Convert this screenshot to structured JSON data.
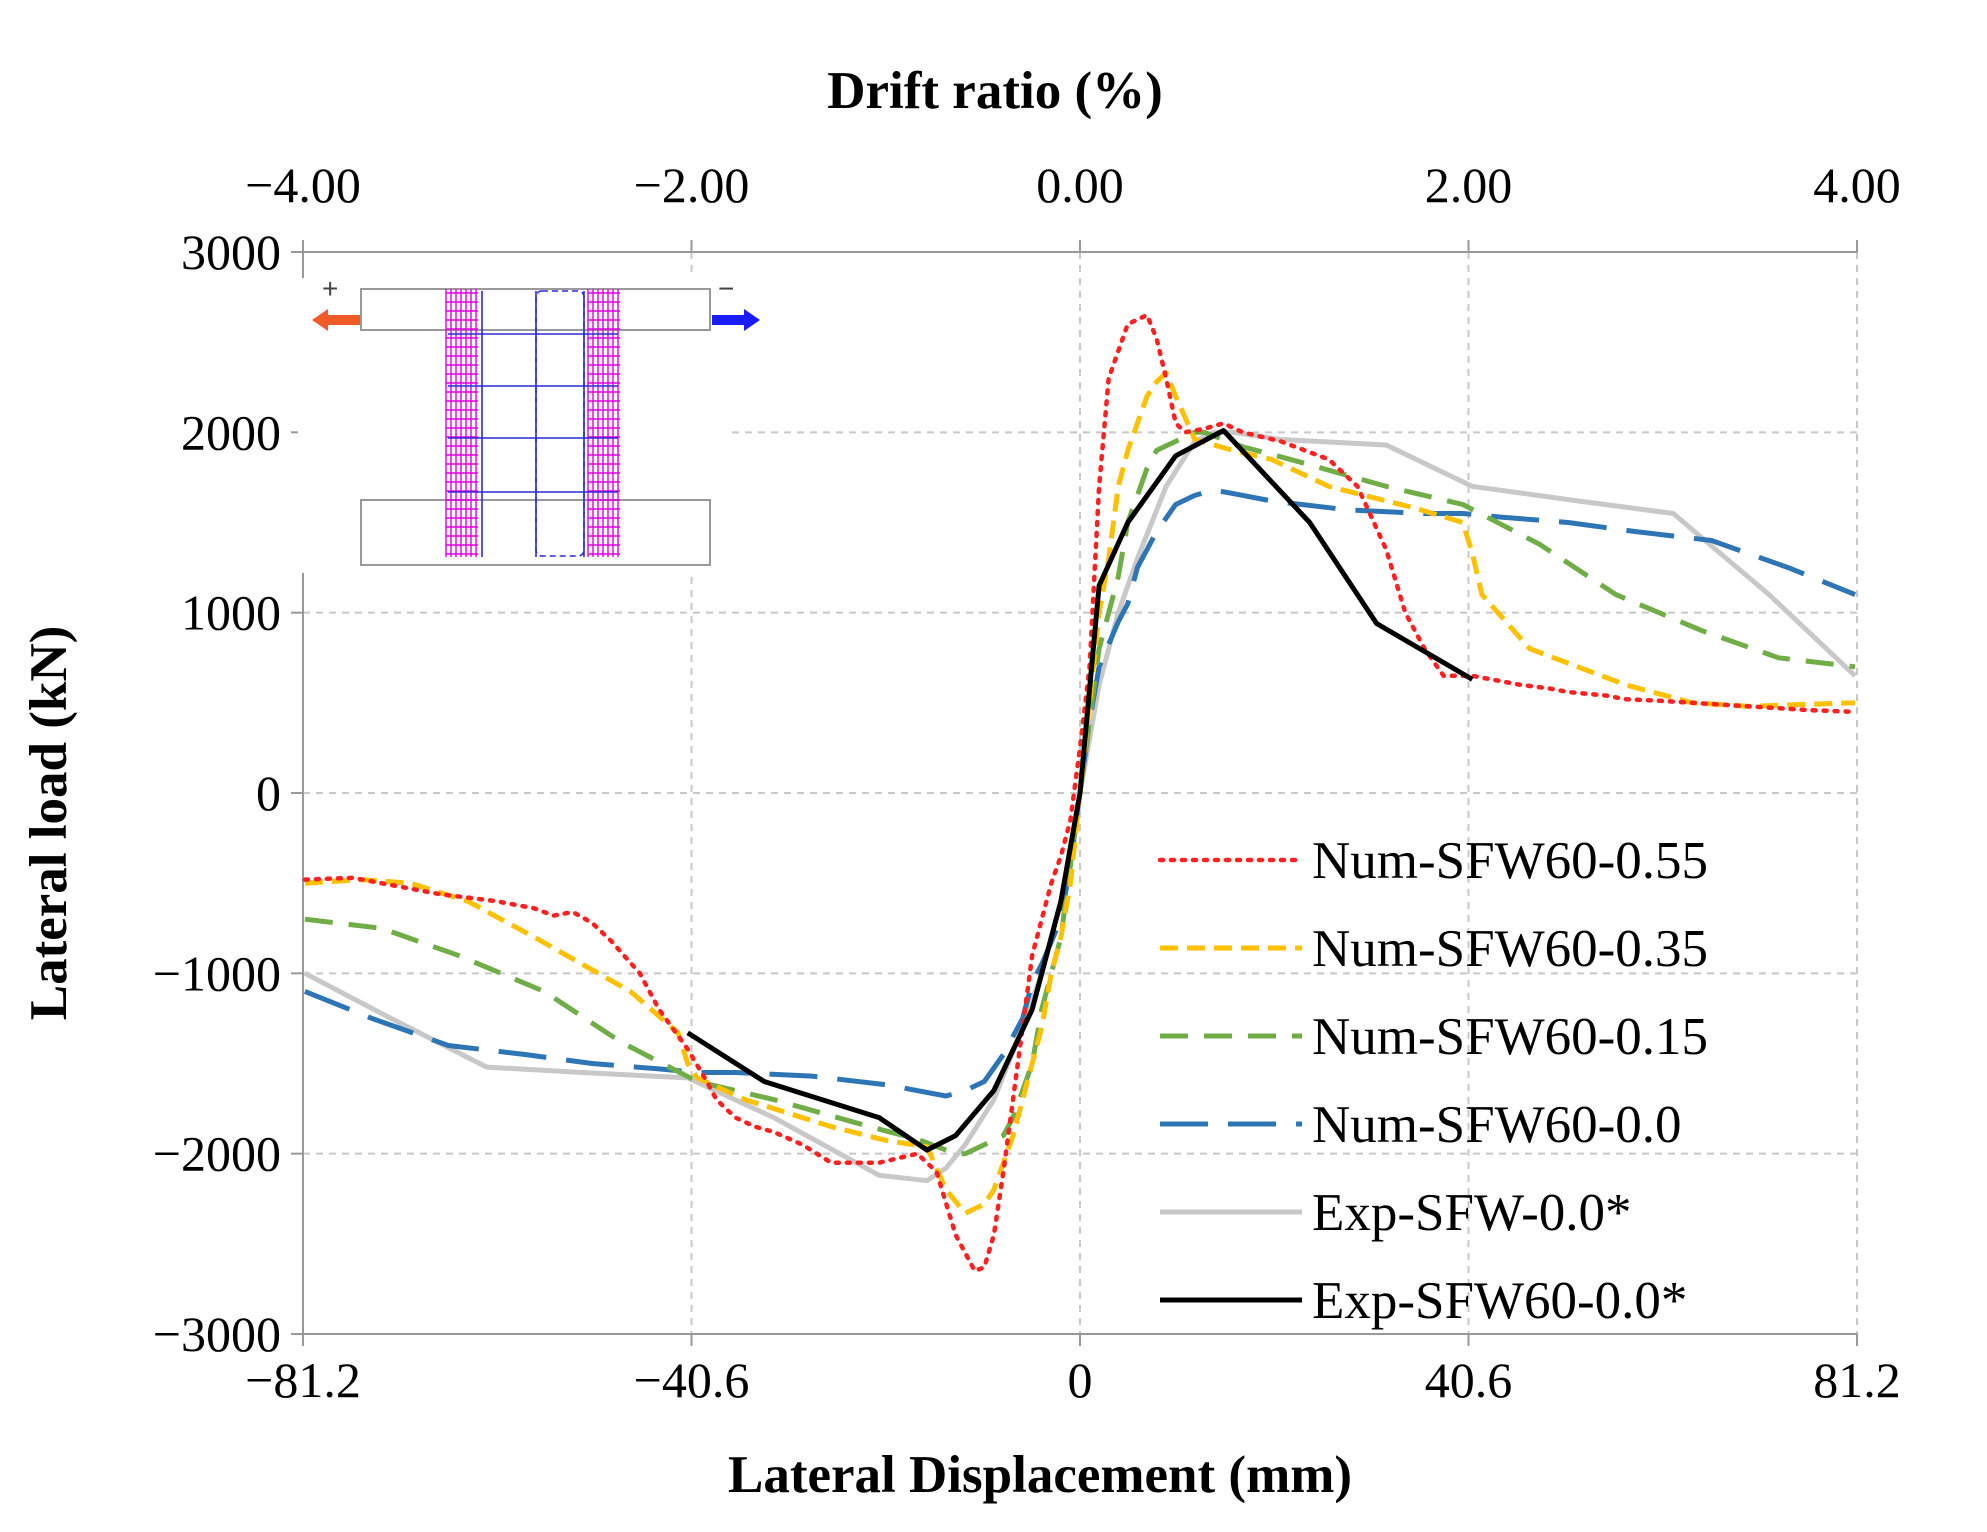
{
  "chart_data": {
    "type": "line",
    "title": "",
    "xlabel": "Lateral Displacement (mm)",
    "ylabel": "Lateral load (kN)",
    "x2label": "Drift ratio (%)",
    "xlim": [
      -81.2,
      81.2
    ],
    "ylim": [
      -3000,
      3000
    ],
    "x2lim": [
      -4.0,
      4.0
    ],
    "xticks": [
      -81.2,
      -40.6,
      0,
      40.6,
      81.2
    ],
    "xtick_labels": [
      "−81.2",
      "−40.6",
      "0",
      "40.6",
      "81.2"
    ],
    "yticks": [
      3000,
      2000,
      1000,
      0,
      -1000,
      -2000,
      -3000
    ],
    "ytick_labels": [
      "3000",
      "2000",
      "1000",
      "0",
      "−1000",
      "−2000",
      "−3000"
    ],
    "x2ticks": [
      -4.0,
      -2.0,
      0.0,
      2.0,
      4.0
    ],
    "x2tick_labels": [
      "−4.00",
      "−2.00",
      "0.00",
      "2.00",
      "4.00"
    ],
    "grid": true,
    "legend_position": "bottom-right",
    "inset": {
      "load_sign_left": "+",
      "load_sign_right": "−",
      "arrow_left_color": "#f05a28",
      "arrow_right_color": "#1a1aff",
      "mesh_color": "#e000e0",
      "rebar_color": "#2b2bd6"
    },
    "series": [
      {
        "name": "Num-SFW60-0.55",
        "color": "#ff2020",
        "dash": "dot",
        "x": [
          -81,
          -76,
          -67,
          -61,
          -57,
          -55,
          -53,
          -51,
          -49,
          -46,
          -44,
          -41,
          -39,
          -38,
          -36,
          -34,
          -32,
          -29,
          -26,
          -21,
          -17,
          -15,
          -13,
          -11,
          -10,
          -9,
          -8,
          -7,
          -5,
          -3,
          -2,
          -1,
          0,
          1,
          2,
          3,
          5,
          7,
          8,
          9,
          10,
          11,
          13,
          15,
          17,
          21,
          26,
          29,
          32,
          34,
          36,
          38,
          39,
          41,
          44,
          46,
          49,
          51,
          53,
          55,
          57,
          61,
          67,
          76,
          81
        ],
        "y": [
          -480,
          -470,
          -560,
          -600,
          -640,
          -680,
          -660,
          -720,
          -820,
          -1000,
          -1200,
          -1420,
          -1600,
          -1700,
          -1800,
          -1850,
          -1880,
          -1950,
          -2050,
          -2050,
          -2000,
          -2100,
          -2450,
          -2650,
          -2630,
          -2450,
          -2100,
          -1700,
          -900,
          -500,
          -350,
          -150,
          250,
          700,
          1700,
          2300,
          2600,
          2650,
          2520,
          2300,
          2050,
          2000,
          2020,
          2050,
          2000,
          1950,
          1850,
          1700,
          1350,
          1000,
          800,
          650,
          650,
          650,
          620,
          600,
          580,
          560,
          550,
          540,
          520,
          510,
          490,
          460,
          450
        ]
      },
      {
        "name": "Num-SFW60-0.35",
        "color": "#ffc000",
        "dash": "short",
        "x": [
          -81,
          -75,
          -70,
          -64,
          -57,
          -47,
          -42,
          -41,
          -40,
          -35,
          -26,
          -20,
          -16,
          -14,
          -12,
          -10,
          -9,
          -8,
          -7,
          -6,
          -4,
          -3,
          -2,
          -1,
          0,
          1,
          2,
          3,
          4,
          5,
          6,
          7,
          8,
          9,
          10,
          12,
          14,
          16,
          20,
          26,
          35,
          40,
          41,
          42,
          47,
          57,
          64,
          70,
          75,
          81
        ],
        "y": [
          -500,
          -480,
          -500,
          -600,
          -800,
          -1100,
          -1330,
          -1500,
          -1580,
          -1700,
          -1850,
          -1930,
          -1960,
          -2200,
          -2330,
          -2280,
          -2200,
          -2050,
          -1900,
          -1700,
          -1300,
          -1000,
          -800,
          -500,
          0,
          500,
          1000,
          1300,
          1700,
          1900,
          2050,
          2200,
          2280,
          2330,
          2200,
          1960,
          1930,
          1900,
          1850,
          1700,
          1580,
          1500,
          1330,
          1100,
          800,
          600,
          500,
          480,
          490,
          500
        ]
      },
      {
        "name": "Num-SFW60-0.15",
        "color": "#70ad47",
        "dash": "medium",
        "x": [
          -81,
          -73,
          -65,
          -56,
          -48,
          -40,
          -32,
          -22,
          -17,
          -13,
          -12,
          -10,
          -8,
          -7,
          -5,
          -4,
          -2,
          -1,
          0,
          1,
          2,
          4,
          5,
          7,
          8,
          10,
          12,
          13,
          17,
          22,
          32,
          40,
          48,
          56,
          65,
          73,
          81
        ],
        "y": [
          -700,
          -750,
          -900,
          -1100,
          -1380,
          -1600,
          -1700,
          -1850,
          -1920,
          -2000,
          -2000,
          -1950,
          -1900,
          -1800,
          -1500,
          -1200,
          -800,
          -400,
          0,
          400,
          800,
          1200,
          1500,
          1800,
          1900,
          1950,
          2000,
          2000,
          1920,
          1850,
          1700,
          1600,
          1380,
          1100,
          900,
          750,
          700
        ]
      },
      {
        "name": "Num-SFW60-0.0",
        "color": "#2e75b6",
        "dash": "long",
        "x": [
          -81,
          -74,
          -66,
          -58,
          -51,
          -44,
          -40,
          -36,
          -28,
          -20,
          -16,
          -14,
          -12,
          -10,
          -8,
          -6,
          -5,
          -4,
          -2,
          -1,
          0,
          1,
          2,
          4,
          5,
          6,
          8,
          10,
          12,
          14,
          16,
          20,
          28,
          36,
          40,
          44,
          51,
          58,
          66,
          74,
          81
        ],
        "y": [
          -1100,
          -1250,
          -1400,
          -1450,
          -1500,
          -1530,
          -1550,
          -1550,
          -1570,
          -1620,
          -1660,
          -1680,
          -1650,
          -1600,
          -1450,
          -1250,
          -1050,
          -950,
          -700,
          -400,
          0,
          400,
          700,
          950,
          1050,
          1250,
          1450,
          1600,
          1650,
          1680,
          1660,
          1620,
          1570,
          1550,
          1550,
          1530,
          1500,
          1450,
          1400,
          1250,
          1100
        ]
      },
      {
        "name": "Exp-SFW-0.0*",
        "color": "#c8c8c8",
        "dash": "solid",
        "x": [
          -81,
          -72,
          -62,
          -52,
          -41,
          -32,
          -21,
          -16,
          -14,
          -12,
          -9,
          -6,
          -4,
          -2,
          0,
          2,
          4,
          6,
          9,
          12,
          14,
          16,
          21,
          32,
          41,
          52,
          62,
          72,
          81
        ],
        "y": [
          -1000,
          -1250,
          -1520,
          -1550,
          -1580,
          -1800,
          -2120,
          -2150,
          -2080,
          -1950,
          -1700,
          -1300,
          -1000,
          -600,
          0,
          600,
          1000,
          1300,
          1700,
          1950,
          2000,
          2000,
          1960,
          1930,
          1700,
          1620,
          1550,
          1100,
          650
        ]
      },
      {
        "name": "Exp-SFW60-0.0*",
        "color": "#000000",
        "dash": "solid",
        "x": [
          -41,
          -33,
          -21,
          -16,
          -13,
          -9,
          -5,
          -2,
          0,
          2,
          5,
          10,
          15,
          24,
          31,
          41
        ],
        "y": [
          -1330,
          -1600,
          -1800,
          -1980,
          -1900,
          -1650,
          -1200,
          -600,
          0,
          1150,
          1500,
          1870,
          2010,
          1500,
          940,
          630
        ]
      }
    ]
  }
}
